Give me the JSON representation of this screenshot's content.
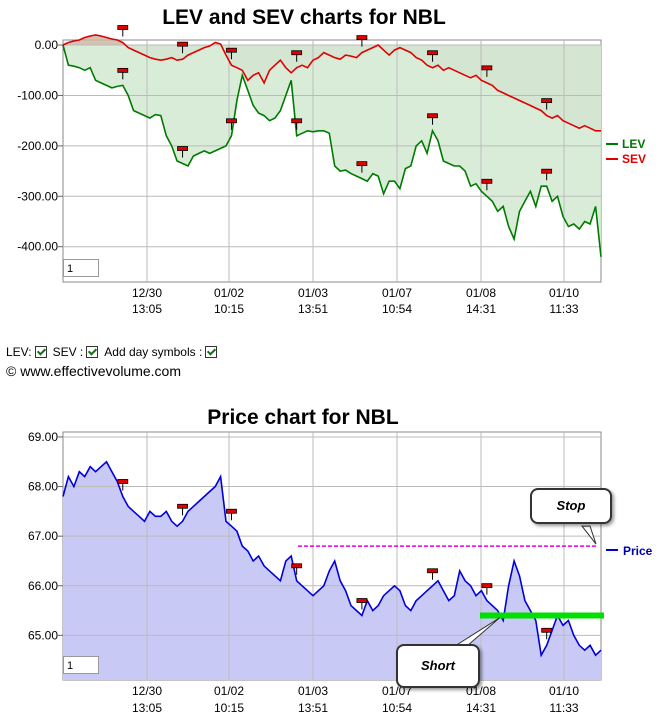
{
  "charts": [
    {
      "type": "line",
      "title": "LEV and SEV charts for NBL",
      "yticks": [
        0,
        -100,
        -200,
        -300,
        -400
      ],
      "ytick_labels": [
        "0.00",
        "-100.00",
        "-200.00",
        "-300.00",
        "-400.00"
      ],
      "ylim": [
        -470,
        10
      ],
      "xtick_dates": [
        "12/30",
        "01/02",
        "01/03",
        "01/07",
        "01/08",
        "01/10"
      ],
      "xtick_times": [
        "13:05",
        "10:15",
        "13:51",
        "10:54",
        "14:31",
        "11:33"
      ],
      "zoom_value": "1",
      "series": [
        {
          "name": "LEV",
          "color": "#007a00",
          "values": [
            0,
            -40,
            -42,
            -45,
            -50,
            -45,
            -70,
            -75,
            -80,
            -85,
            -82,
            -80,
            -100,
            -130,
            -135,
            -140,
            -145,
            -138,
            -140,
            -180,
            -200,
            -230,
            -235,
            -240,
            -220,
            -215,
            -210,
            -215,
            -210,
            -205,
            -200,
            -180,
            -110,
            -60,
            -90,
            -120,
            -135,
            -140,
            -150,
            -145,
            -130,
            -100,
            -70,
            -180,
            -175,
            -170,
            -172,
            -170,
            -170,
            -175,
            -240,
            -250,
            -248,
            -255,
            -260,
            -265,
            -270,
            -255,
            -260,
            -295,
            -270,
            -270,
            -285,
            -245,
            -240,
            -200,
            -190,
            -215,
            -170,
            -190,
            -230,
            -235,
            -240,
            -240,
            -250,
            -280,
            -275,
            -290,
            -300,
            -310,
            -330,
            -320,
            -360,
            -385,
            -330,
            -310,
            -290,
            -320,
            -280,
            -280,
            -310,
            -300,
            -340,
            -360,
            -355,
            -365,
            -350,
            -355,
            -320,
            -420
          ]
        },
        {
          "name": "SEV",
          "color": "#e00000",
          "values": [
            0,
            5,
            8,
            10,
            15,
            18,
            20,
            18,
            15,
            12,
            10,
            5,
            -5,
            -10,
            -15,
            -20,
            -25,
            -28,
            -30,
            -28,
            -25,
            -30,
            -28,
            -20,
            -15,
            -10,
            -5,
            -2,
            5,
            2,
            -20,
            -40,
            -45,
            -50,
            -70,
            -60,
            -55,
            -75,
            -50,
            -40,
            -30,
            -45,
            -55,
            -45,
            -40,
            -45,
            -30,
            -25,
            -15,
            -20,
            -25,
            -28,
            -20,
            -22,
            -25,
            -15,
            -10,
            -5,
            0,
            -10,
            -20,
            -10,
            -5,
            -10,
            -15,
            -25,
            -30,
            -40,
            -45,
            -40,
            -50,
            -45,
            -50,
            -55,
            -60,
            -65,
            -60,
            -70,
            -75,
            -80,
            -90,
            -95,
            -100,
            -105,
            -110,
            -115,
            -120,
            -125,
            -130,
            -140,
            -145,
            -140,
            -150,
            -155,
            -160,
            -165,
            -160,
            -165,
            -170,
            -170
          ]
        }
      ]
    },
    {
      "type": "area",
      "title": "Price chart for NBL",
      "yticks": [
        65,
        66,
        67,
        68,
        69
      ],
      "ytick_labels": [
        "65.00",
        "66.00",
        "67.00",
        "68.00",
        "69.00"
      ],
      "ylim": [
        64.1,
        69.1
      ],
      "xtick_dates": [
        "12/30",
        "01/02",
        "01/03",
        "01/07",
        "01/08",
        "01/10"
      ],
      "xtick_times": [
        "13:05",
        "10:15",
        "13:51",
        "10:54",
        "14:31",
        "11:33"
      ],
      "zoom_value": "1",
      "stop_level": 66.8,
      "short_level": 65.4,
      "series": [
        {
          "name": "Price",
          "color": "#0000dd",
          "values": [
            67.8,
            68.2,
            68.0,
            68.3,
            68.2,
            68.4,
            68.3,
            68.4,
            68.5,
            68.3,
            68.1,
            67.8,
            67.6,
            67.5,
            67.4,
            67.3,
            67.5,
            67.4,
            67.4,
            67.5,
            67.3,
            67.2,
            67.3,
            67.5,
            67.6,
            67.7,
            67.8,
            67.9,
            68.0,
            68.2,
            67.3,
            67.2,
            67.1,
            66.8,
            66.7,
            66.5,
            66.6,
            66.4,
            66.3,
            66.2,
            66.1,
            66.5,
            66.6,
            66.1,
            66.0,
            65.9,
            65.8,
            65.9,
            66.0,
            66.3,
            66.5,
            66.1,
            65.9,
            65.6,
            65.5,
            65.4,
            65.7,
            65.5,
            65.6,
            65.8,
            65.9,
            66.0,
            65.9,
            65.6,
            65.5,
            65.7,
            65.8,
            65.9,
            66.0,
            66.1,
            65.9,
            65.7,
            65.8,
            66.3,
            66.1,
            66.0,
            65.8,
            65.9,
            65.7,
            65.6,
            65.5,
            65.3,
            66.0,
            66.5,
            66.2,
            65.7,
            65.5,
            65.3,
            64.6,
            64.8,
            65.1,
            65.4,
            65.2,
            65.3,
            65.0,
            64.8,
            64.7,
            64.8,
            64.6,
            64.7
          ]
        }
      ]
    }
  ],
  "legend_labels": {
    "lev": "LEV",
    "sev": "SEV",
    "price": "Price"
  },
  "controls": {
    "lev_label": "LEV:",
    "sev_label": "SEV :",
    "day_symbols_label": "Add day symbols :"
  },
  "copyright": "© www.effectivevolume.com",
  "annotations": {
    "stop": "Stop",
    "short": "Short"
  },
  "colors": {
    "sev_fill": "#cdb7a5",
    "lev_fill": "#d4ead4",
    "price_fill": "#c9c9f5",
    "stop": "#e000e0",
    "short": "#00e000",
    "marker": "#e00000"
  }
}
